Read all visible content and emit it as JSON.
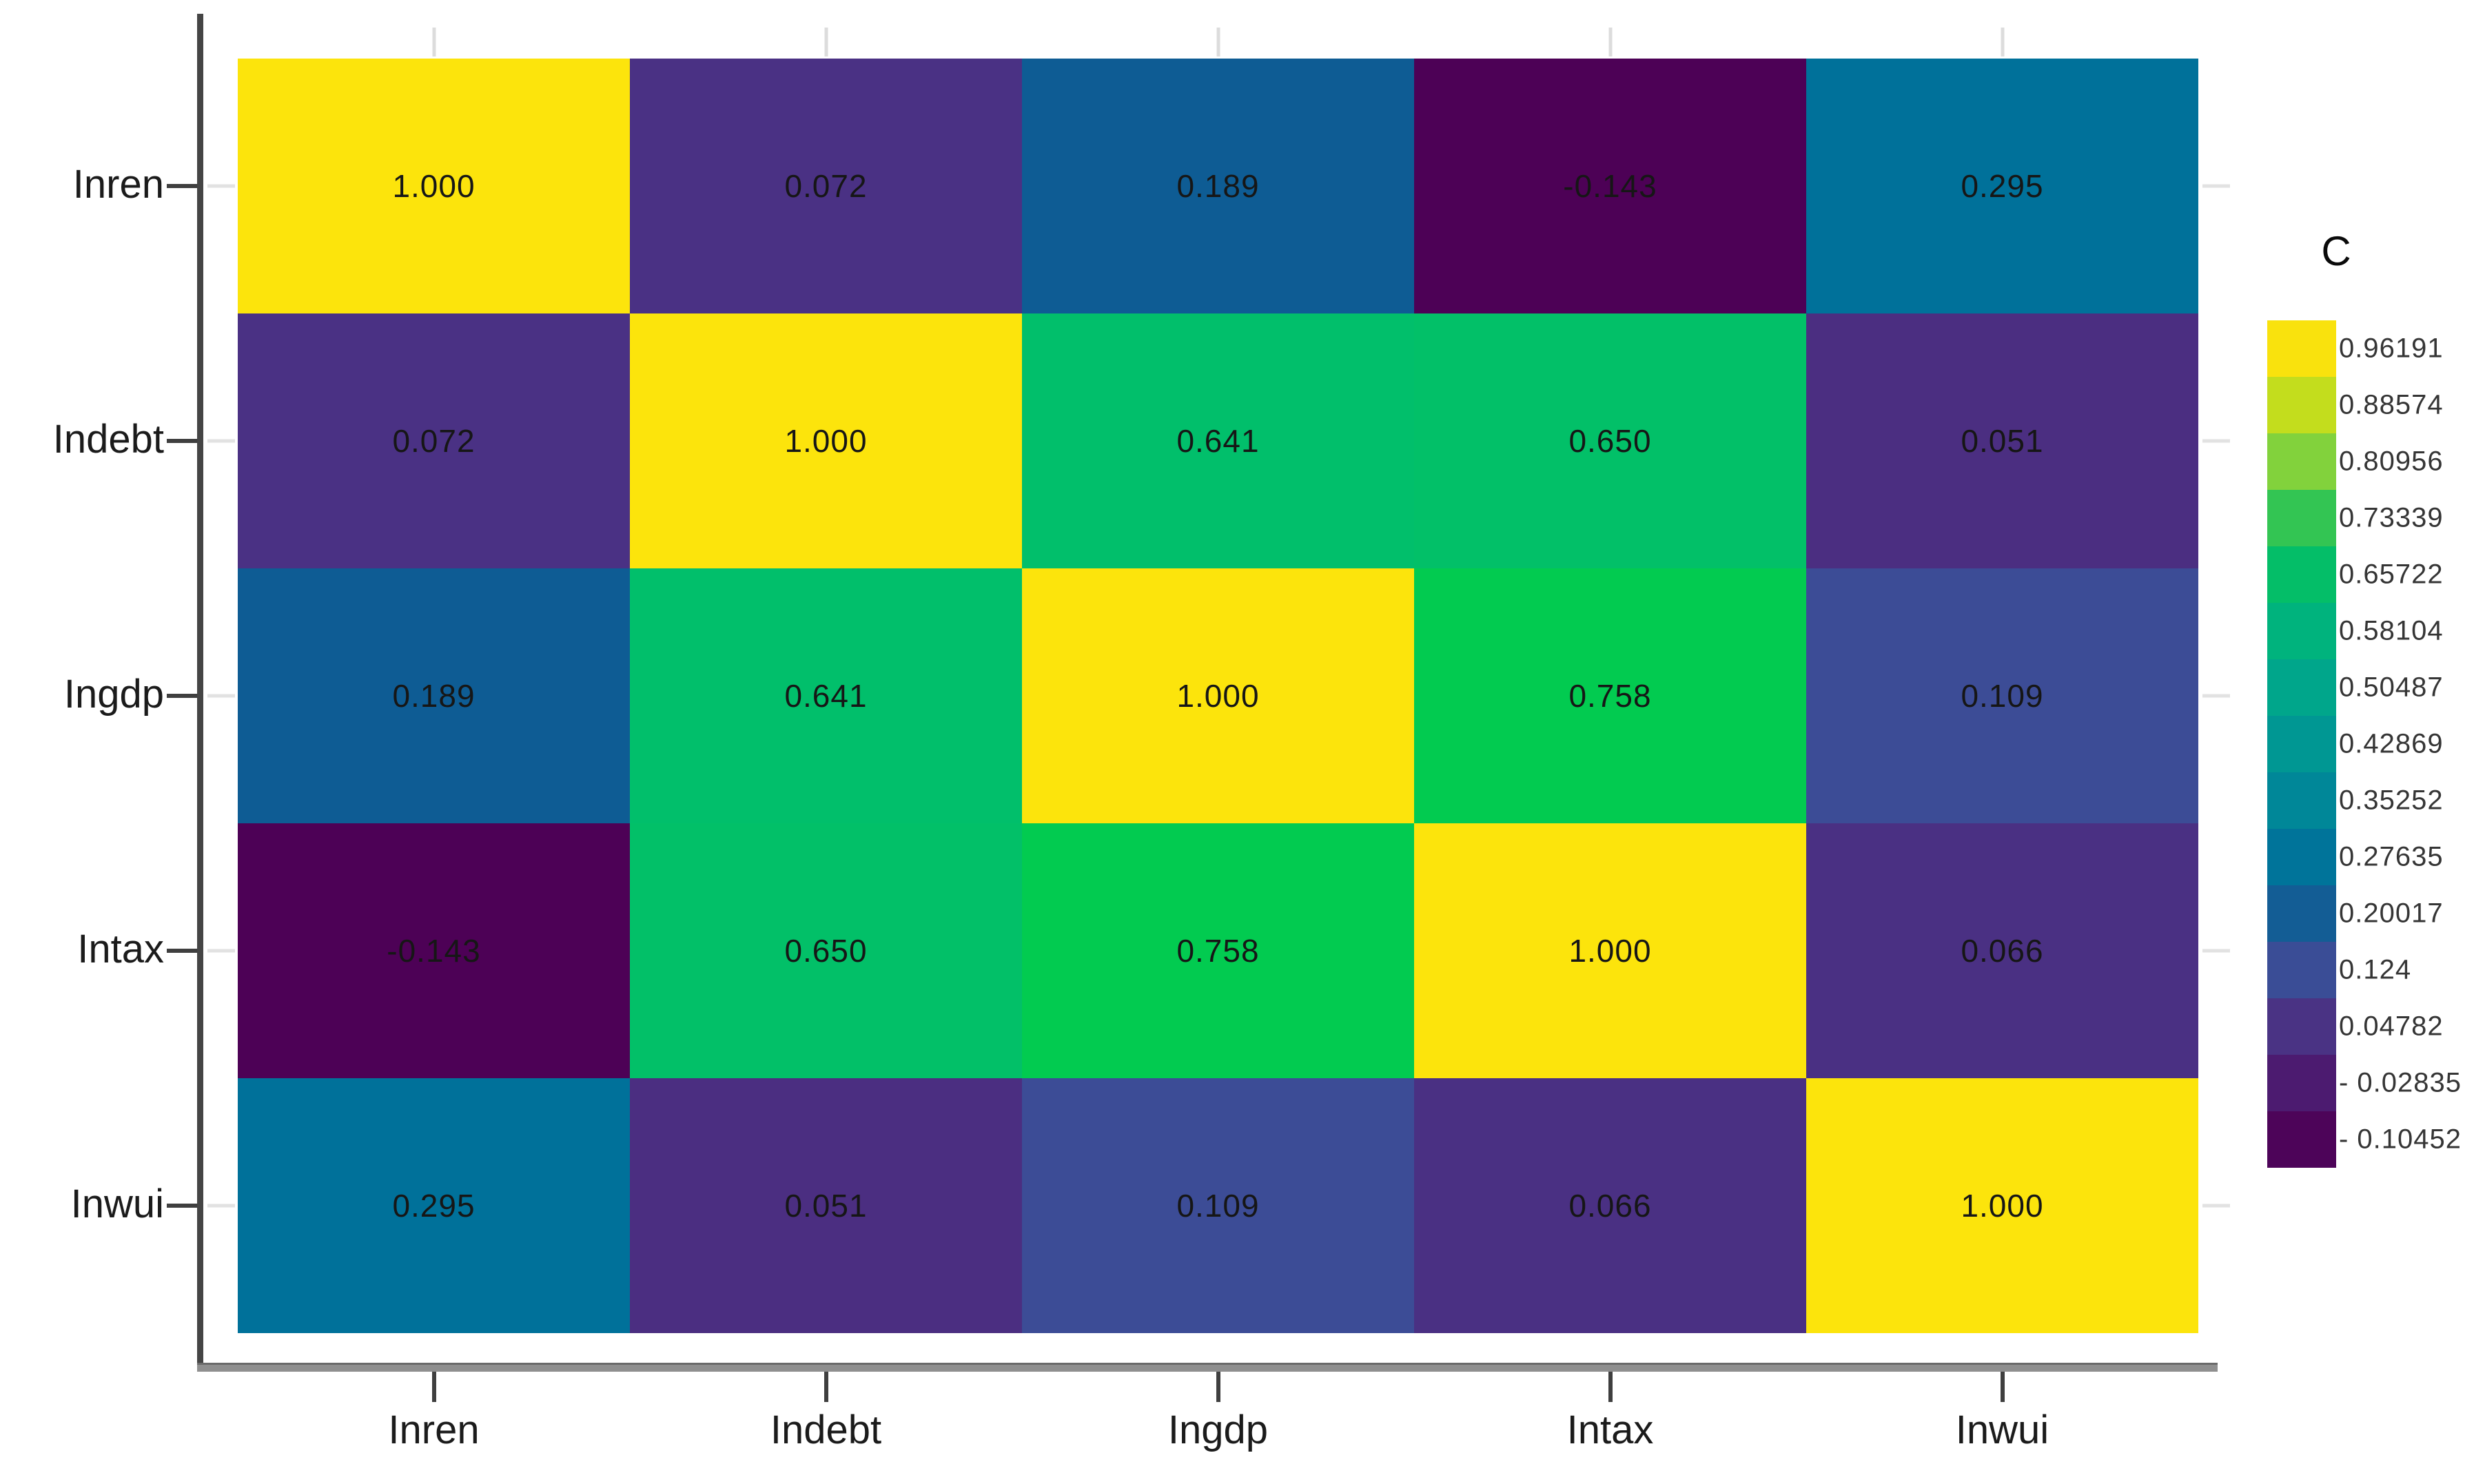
{
  "chart_data": {
    "type": "heatmap",
    "title": "",
    "colormap": "viridis",
    "x_categories": [
      "Inren",
      "Indebt",
      "Ingdp",
      "Intax",
      "Inwui"
    ],
    "y_categories": [
      "Inren",
      "Indebt",
      "Ingdp",
      "Intax",
      "Inwui"
    ],
    "matrix": [
      [
        1.0,
        0.072,
        0.189,
        -0.143,
        0.295
      ],
      [
        0.072,
        1.0,
        0.641,
        0.65,
        0.051
      ],
      [
        0.189,
        0.641,
        1.0,
        0.758,
        0.109
      ],
      [
        -0.143,
        0.65,
        0.758,
        1.0,
        0.066
      ],
      [
        0.295,
        0.051,
        0.109,
        0.066,
        1.0
      ]
    ],
    "value_range": [
      -0.143,
      1.0
    ],
    "legend_title": "C",
    "legend_position": "right",
    "legend_tick_values": [
      0.96191,
      0.88574,
      0.80956,
      0.73339,
      0.65722,
      0.58104,
      0.50487,
      0.42869,
      0.35252,
      0.27635,
      0.20017,
      0.124,
      0.04782,
      -0.02835,
      -0.10452
    ],
    "grid": false
  },
  "heatmap": {
    "row_labels": [
      "Inren",
      "Indebt",
      "Ingdp",
      "Intax",
      "Inwui"
    ],
    "col_labels": [
      "Inren",
      "Indebt",
      "Ingdp",
      "Intax",
      "Inwui"
    ],
    "cells": [
      [
        {
          "text": "1.000",
          "color": "#FCE40C"
        },
        {
          "text": "0.072",
          "color": "#4A3184"
        },
        {
          "text": "0.189",
          "color": "#0E5C94"
        },
        {
          "text": "-0.143",
          "color": "#4D0156"
        },
        {
          "text": "0.295",
          "color": "#00719A"
        }
      ],
      [
        {
          "text": "0.072",
          "color": "#4A3184"
        },
        {
          "text": "1.000",
          "color": "#FCE40C"
        },
        {
          "text": "0.641",
          "color": "#01BF6B"
        },
        {
          "text": "0.650",
          "color": "#02C068"
        },
        {
          "text": "0.051",
          "color": "#4B2E81"
        }
      ],
      [
        {
          "text": "0.189",
          "color": "#0E5C94"
        },
        {
          "text": "0.641",
          "color": "#01BF6B"
        },
        {
          "text": "1.000",
          "color": "#FCE40C"
        },
        {
          "text": "0.758",
          "color": "#02CB50"
        },
        {
          "text": "0.109",
          "color": "#3C4C96"
        }
      ],
      [
        {
          "text": "-0.143",
          "color": "#4D0156"
        },
        {
          "text": "0.650",
          "color": "#02C068"
        },
        {
          "text": "0.758",
          "color": "#02CB50"
        },
        {
          "text": "1.000",
          "color": "#FCE40C"
        },
        {
          "text": "0.066",
          "color": "#4A3083"
        }
      ],
      [
        {
          "text": "0.295",
          "color": "#00719A"
        },
        {
          "text": "0.051",
          "color": "#4B2E81"
        },
        {
          "text": "0.109",
          "color": "#3C4C96"
        },
        {
          "text": "0.066",
          "color": "#4A3083"
        },
        {
          "text": "1.000",
          "color": "#FCE40C"
        }
      ]
    ]
  },
  "legend": {
    "title": "C",
    "entries": [
      {
        "label": "0.96191",
        "color": "#F9E20D"
      },
      {
        "label": "0.88574",
        "color": "#C3DD1D"
      },
      {
        "label": "0.80956",
        "color": "#82D23C"
      },
      {
        "label": "0.73339",
        "color": "#33C553"
      },
      {
        "label": "0.65722",
        "color": "#04BE68"
      },
      {
        "label": "0.58104",
        "color": "#00B37D"
      },
      {
        "label": "0.50487",
        "color": "#00A68B"
      },
      {
        "label": "0.42869",
        "color": "#009793"
      },
      {
        "label": "0.35252",
        "color": "#008798"
      },
      {
        "label": "0.27635",
        "color": "#00749A"
      },
      {
        "label": "0.20017",
        "color": "#135D95"
      },
      {
        "label": "0.124",
        "color": "#3A4D96"
      },
      {
        "label": "0.04782",
        "color": "#4A3384"
      },
      {
        "label": "- 0.02835",
        "color": "#4C1B70"
      },
      {
        "label": "- 0.10452",
        "color": "#4D0459"
      }
    ]
  }
}
